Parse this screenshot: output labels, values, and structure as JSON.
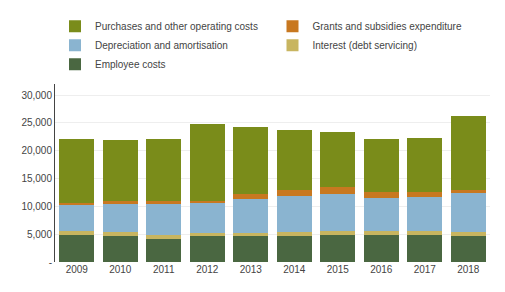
{
  "chart_data": {
    "type": "bar",
    "stacked": true,
    "categories": [
      "2009",
      "2010",
      "2011",
      "2012",
      "2013",
      "2014",
      "2015",
      "2016",
      "2017",
      "2018"
    ],
    "series": [
      {
        "name": "Employee costs",
        "color": "#4a6741",
        "values": [
          4800,
          4700,
          4200,
          4600,
          4600,
          4700,
          4800,
          4900,
          4800,
          4700
        ]
      },
      {
        "name": "Interest (debt servicing)",
        "color": "#c8b560",
        "values": [
          700,
          700,
          700,
          700,
          700,
          700,
          700,
          700,
          700,
          700
        ]
      },
      {
        "name": "Depreciation and amortisation",
        "color": "#8ab4d0",
        "values": [
          4800,
          5200,
          5700,
          5400,
          6000,
          6500,
          6800,
          5900,
          6200,
          7000
        ]
      },
      {
        "name": "Grants and subsidies expenditure",
        "color": "#c87820",
        "values": [
          300,
          300,
          300,
          300,
          900,
          1100,
          1200,
          1000,
          800,
          600
        ]
      },
      {
        "name": "Purchases and other operating costs",
        "color": "#7a8c1a",
        "values": [
          11500,
          11100,
          11200,
          13800,
          12100,
          10800,
          9800,
          9700,
          9800,
          13200
        ]
      }
    ],
    "ylim": [
      0,
      32000
    ],
    "yticks": [
      {
        "value": 0,
        "label": "-"
      },
      {
        "value": 5000,
        "label": "5,000"
      },
      {
        "value": 10000,
        "label": "10,000"
      },
      {
        "value": 15000,
        "label": "15,000"
      },
      {
        "value": 20000,
        "label": "20,000"
      },
      {
        "value": 25000,
        "label": "25,000"
      },
      {
        "value": 30000,
        "label": "30,000"
      }
    ],
    "grid": true,
    "legend": "top"
  }
}
